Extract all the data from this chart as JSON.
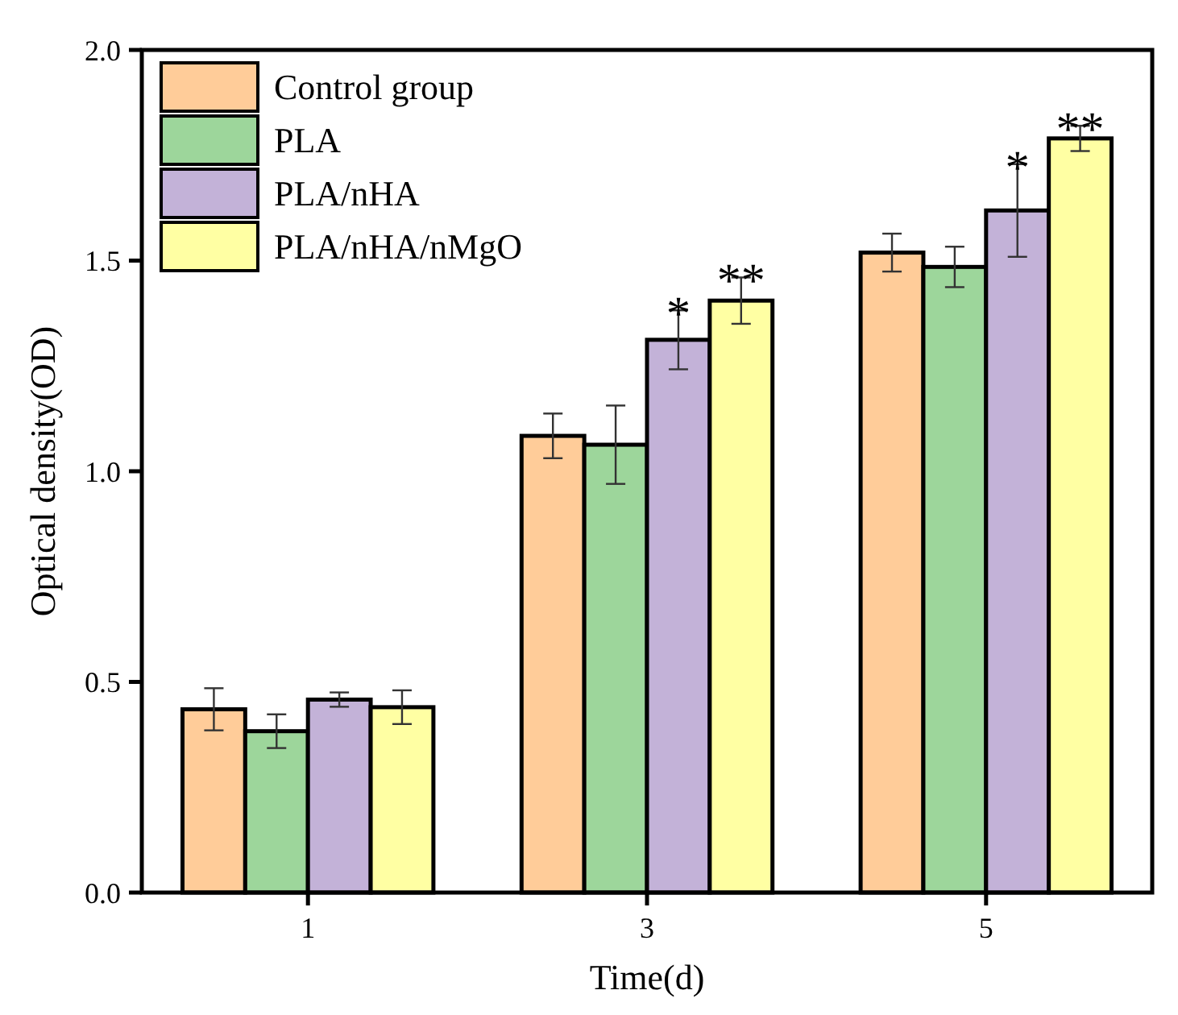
{
  "chart_data": {
    "type": "bar",
    "xlabel": "Time(d)",
    "ylabel": "Optical density(OD)",
    "categories": [
      "1",
      "3",
      "5"
    ],
    "series": [
      {
        "name": "Control group",
        "color": "#ffcc99",
        "values": [
          0.435,
          1.084,
          1.519
        ],
        "errors": [
          0.05,
          0.053,
          0.045
        ]
      },
      {
        "name": "PLA",
        "color": "#9dd69b",
        "values": [
          0.383,
          1.063,
          1.485
        ],
        "errors": [
          0.04,
          0.093,
          0.048
        ]
      },
      {
        "name": "PLA/nHA",
        "color": "#c3b2d8",
        "values": [
          0.458,
          1.312,
          1.619
        ],
        "errors": [
          0.017,
          0.07,
          0.11
        ],
        "value_labels": [
          null,
          "*",
          "*"
        ]
      },
      {
        "name": "PLA/nHA/nMgO",
        "color": "#ffffa3",
        "values": [
          0.44,
          1.405,
          1.79
        ],
        "errors": [
          0.04,
          0.055,
          0.03
        ],
        "value_labels": [
          null,
          "**",
          "**"
        ]
      }
    ],
    "ylim": [
      0,
      2
    ],
    "yticks": [
      {
        "value": 0,
        "label": "0.0"
      },
      {
        "value": 0.5,
        "label": "0.5"
      },
      {
        "value": 1,
        "label": "1.0"
      },
      {
        "value": 1.5,
        "label": "1.5"
      },
      {
        "value": 2,
        "label": "2.0"
      }
    ],
    "legend": "top left",
    "grid": false
  }
}
